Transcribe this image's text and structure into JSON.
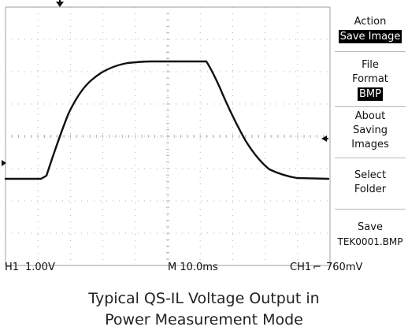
{
  "menu": {
    "action": {
      "title": "Action",
      "value": "Save Image"
    },
    "file_format": {
      "title_line1": "File",
      "title_line2": "Format",
      "value": "BMP"
    },
    "about": {
      "line1": "About",
      "line2": "Saving",
      "line3": "Images"
    },
    "select_folder": {
      "line1": "Select",
      "line2": "Folder"
    },
    "save": {
      "line1": "Save",
      "line2": "TEK0001.BMP"
    }
  },
  "status_bar": {
    "h_channel": "H1",
    "h_scale": "1.00V",
    "timebase": "M 10.0ms",
    "trigger_channel": "CH1",
    "trigger_slope_symbol": "⌐",
    "trigger_level": "760mV"
  },
  "caption": {
    "line1": "Typical QS-IL Voltage Output in",
    "line2": "Power Measurement Mode"
  },
  "icons": {
    "trigger_position_marker": "down-arrow-icon",
    "trigger_level_marker": "left-arrow-icon",
    "ground_marker": "right-arrow-icon"
  },
  "colors": {
    "trace": "#111111",
    "grid": "#b0b0b0",
    "menu_highlight_bg": "#000000",
    "menu_highlight_text": "#ffffff"
  }
}
